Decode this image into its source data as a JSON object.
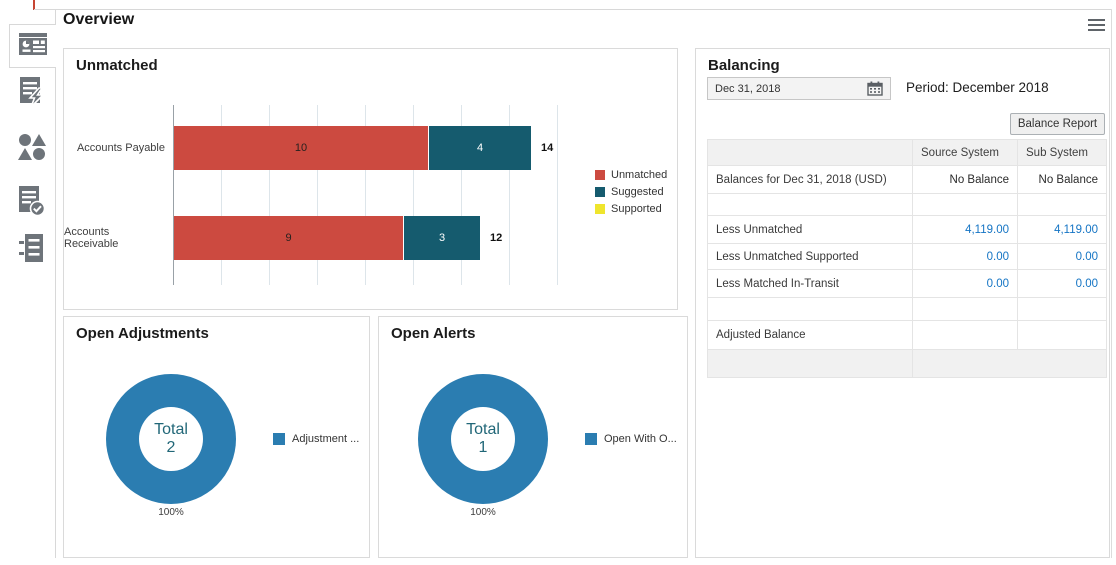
{
  "app": {
    "title": "Overview"
  },
  "topbar": {
    "menu_icon": "hamburger-icon"
  },
  "sidebar": {
    "items": [
      {
        "id": "overview",
        "icon": "dashboard-icon",
        "selected": true
      },
      {
        "id": "matching",
        "icon": "matching-icon",
        "selected": false
      },
      {
        "id": "datasets",
        "icon": "shapes-icon",
        "selected": false
      },
      {
        "id": "compliance",
        "icon": "document-check-icon",
        "selected": false
      },
      {
        "id": "adjustments",
        "icon": "ledger-icon",
        "selected": false
      }
    ]
  },
  "unmatched": {
    "title": "Unmatched",
    "chart_data": {
      "type": "bar",
      "orientation": "horizontal",
      "stacked": true,
      "categories": [
        "Accounts Payable",
        "Accounts Receivable"
      ],
      "series": [
        {
          "name": "Unmatched",
          "color": "#CC4A40",
          "values": [
            10,
            9
          ]
        },
        {
          "name": "Suggested",
          "color": "#155B6E",
          "values": [
            4,
            3
          ]
        },
        {
          "name": "Supported",
          "color": "#EFE52D",
          "values": [
            0,
            0
          ]
        }
      ],
      "totals": [
        14,
        12
      ],
      "xlim": [
        0,
        16
      ],
      "grid": true,
      "legend_position": "right"
    }
  },
  "open_adjustments": {
    "title": "Open Adjustments",
    "chart_data": {
      "type": "pie",
      "donut": true,
      "center_label": "Total",
      "total": 2,
      "slices": [
        {
          "label": "Adjustment ...",
          "value": 2,
          "pct": "100%",
          "color": "#2B7DB1"
        }
      ],
      "legend_position": "right"
    }
  },
  "open_alerts": {
    "title": "Open Alerts",
    "chart_data": {
      "type": "pie",
      "donut": true,
      "center_label": "Total",
      "total": 1,
      "slices": [
        {
          "label": "Open With O...",
          "value": 1,
          "pct": "100%",
          "color": "#2B7DB1"
        }
      ],
      "legend_position": "right"
    }
  },
  "balancing": {
    "title": "Balancing",
    "date_field": {
      "value": "Dec 31, 2018",
      "icon": "calendar-icon"
    },
    "period_text": "Period: December 2018",
    "report_button": "Balance Report",
    "table": {
      "headers": [
        "",
        "Source System",
        "Sub System"
      ],
      "rows": [
        {
          "label": "Balances for Dec 31, 2018 (USD)",
          "source": "No Balance",
          "sub": "No Balance",
          "is_link": false
        },
        {
          "label": "",
          "source": "",
          "sub": "",
          "is_link": false
        },
        {
          "label": "Less Unmatched",
          "source": "4,119.00",
          "sub": "4,119.00",
          "is_link": true
        },
        {
          "label": "Less Unmatched Supported",
          "source": "0.00",
          "sub": "0.00",
          "is_link": true
        },
        {
          "label": "Less Matched In-Transit",
          "source": "0.00",
          "sub": "0.00",
          "is_link": true
        },
        {
          "label": "",
          "source": "",
          "sub": "",
          "is_link": false
        },
        {
          "label": "Adjusted Balance",
          "source": "",
          "sub": "",
          "is_link": false
        }
      ]
    }
  },
  "colors": {
    "accent_red": "#C74634",
    "bar_unmatched": "#CC4A40",
    "bar_suggested": "#155B6E",
    "bar_supported": "#EFE52D",
    "donut_blue": "#2B7DB1",
    "link_blue": "#1474C4"
  }
}
